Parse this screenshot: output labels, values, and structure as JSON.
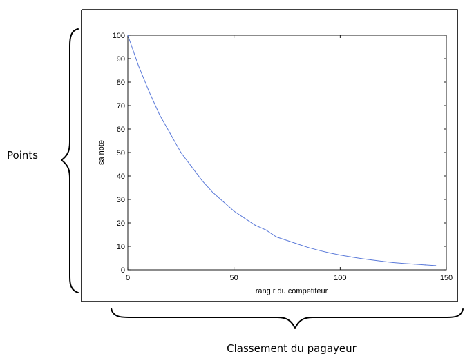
{
  "chart_data": {
    "type": "line",
    "title": "",
    "xlabel": "rang r du competiteur",
    "ylabel": "sa note",
    "xlim": [
      0,
      150
    ],
    "ylim": [
      0,
      100
    ],
    "x_ticks": [
      0,
      50,
      100,
      150
    ],
    "y_ticks": [
      0,
      10,
      20,
      30,
      40,
      50,
      60,
      70,
      80,
      90,
      100
    ],
    "line_color": "#5b7ad9",
    "grid": false,
    "series": [
      {
        "x": [
          0,
          5,
          10,
          15,
          20,
          25,
          30,
          35,
          40,
          45,
          50,
          55,
          60,
          65,
          70,
          75,
          80,
          85,
          90,
          95,
          100,
          105,
          110,
          115,
          120,
          125,
          130,
          135,
          140,
          145
        ],
        "values": [
          100,
          87,
          76,
          66,
          58,
          50,
          44,
          38,
          33,
          29,
          25,
          22,
          19,
          17,
          14,
          12.5,
          11,
          9.5,
          8.3,
          7.2,
          6.3,
          5.5,
          4.8,
          4.2,
          3.6,
          3.1,
          2.7,
          2.4,
          2.1,
          1.8
        ]
      }
    ]
  },
  "annotations": {
    "left_label": "Points",
    "bottom_label": "Classement du pagayeur"
  }
}
